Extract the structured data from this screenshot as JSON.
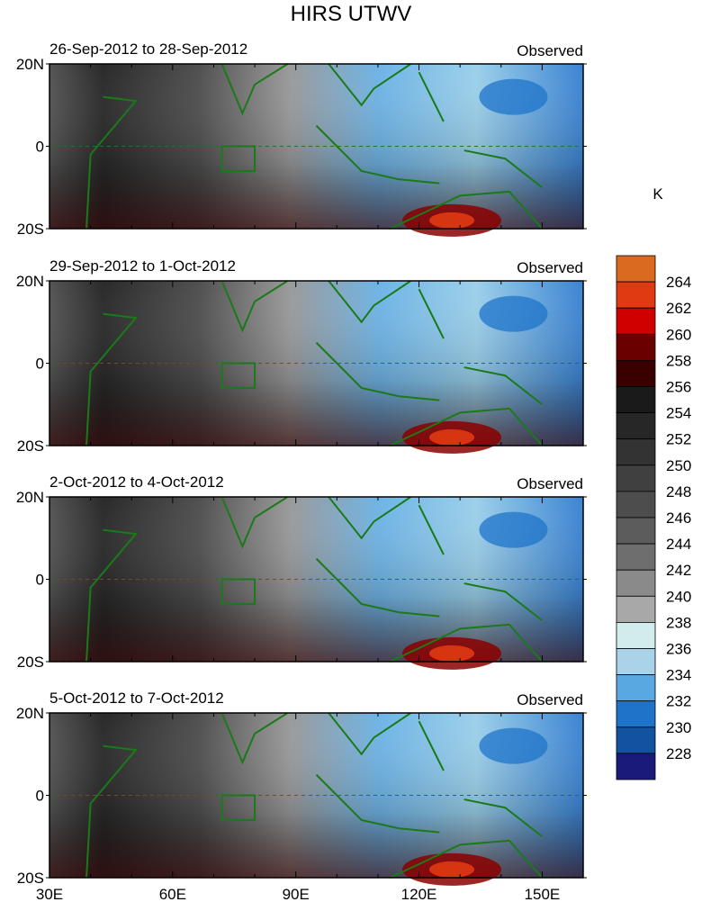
{
  "title": "HIRS UTWV",
  "units_label": "K",
  "colorbar": {
    "labels": [
      "264",
      "262",
      "260",
      "258",
      "256",
      "254",
      "252",
      "250",
      "248",
      "246",
      "244",
      "242",
      "240",
      "238",
      "236",
      "234",
      "232",
      "230",
      "228"
    ],
    "colors": [
      "#d96a20",
      "#e03a12",
      "#cf0000",
      "#6b0000",
      "#3a0000",
      "#1a1a1a",
      "#272727",
      "#333333",
      "#404040",
      "#4d4d4d",
      "#5c5c5c",
      "#6e6e6e",
      "#8a8a8a",
      "#a8a8a8",
      "#d2ecec",
      "#a9d3e8",
      "#5aa8e2",
      "#1f74c9",
      "#12529e",
      "#1a1a7a"
    ]
  },
  "panels": [
    {
      "date_label": "26-Sep-2012 to 28-Sep-2012",
      "tag": "Observed"
    },
    {
      "date_label": "29-Sep-2012 to 1-Oct-2012",
      "tag": "Observed"
    },
    {
      "date_label": "2-Oct-2012 to 4-Oct-2012",
      "tag": "Observed"
    },
    {
      "date_label": "5-Oct-2012 to 7-Oct-2012",
      "tag": "Observed"
    }
  ],
  "chart_data": {
    "type": "heatmap",
    "title": "HIRS UTWV",
    "xlabel": "",
    "ylabel": "",
    "x_ticks": [
      "30E",
      "60E",
      "90E",
      "120E",
      "150E"
    ],
    "y_ticks": [
      "20N",
      "0",
      "20S"
    ],
    "xlim": [
      30,
      160
    ],
    "ylim": [
      -20,
      20
    ],
    "colorbar_units": "K",
    "colorbar_levels": [
      228,
      230,
      232,
      234,
      236,
      238,
      240,
      242,
      244,
      246,
      248,
      250,
      252,
      254,
      256,
      258,
      260,
      262,
      264
    ],
    "panels": [
      "26-Sep-2012 to 28-Sep-2012",
      "29-Sep-2012 to 1-Oct-2012",
      "2-Oct-2012 to 4-Oct-2012",
      "5-Oct-2012 to 7-Oct-2012"
    ]
  }
}
